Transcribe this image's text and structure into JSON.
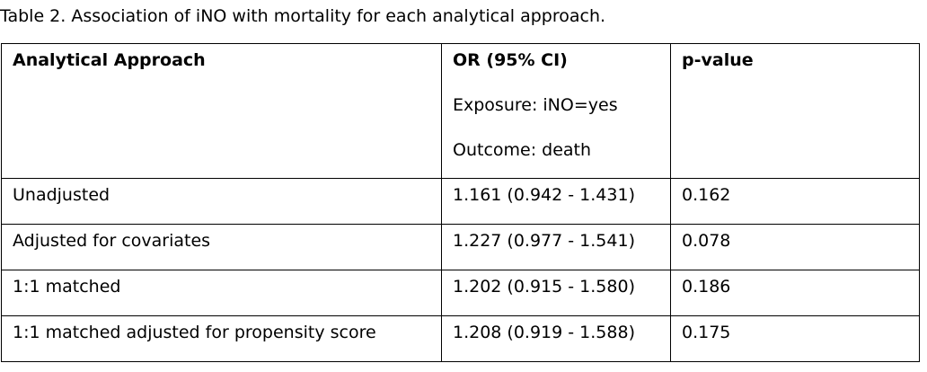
{
  "caption": "Table 2.  Association of iNO with mortality for each analytical approach.",
  "table": {
    "headers": {
      "approach": "Analytical Approach",
      "or": "OR (95% CI)",
      "exposure": "Exposure: iNO=yes",
      "outcome": "Outcome: death",
      "pvalue": "p-value"
    },
    "rows": [
      {
        "approach": "Unadjusted",
        "or": "1.161 (0.942 - 1.431)",
        "p": "0.162"
      },
      {
        "approach": "Adjusted for covariates",
        "or": "1.227 (0.977 - 1.541)",
        "p": "0.078"
      },
      {
        "approach": "1:1 matched",
        "or": "1.202 (0.915 - 1.580)",
        "p": "0.186"
      },
      {
        "approach": "1:1 matched adjusted for propensity score",
        "or": "1.208 (0.919 - 1.588)",
        "p": "0.175"
      }
    ]
  }
}
